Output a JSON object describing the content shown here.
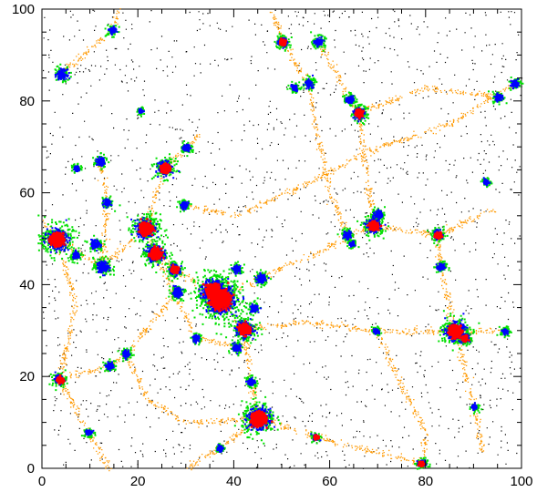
{
  "chart_data": {
    "type": "scatter",
    "title": "",
    "xlabel": "",
    "ylabel": "",
    "xlim": [
      0,
      100
    ],
    "ylim": [
      0,
      100
    ],
    "grid": false,
    "x_ticks": [
      0,
      20,
      40,
      60,
      80,
      100
    ],
    "y_ticks": [
      0,
      20,
      40,
      60,
      80,
      100
    ],
    "x_tick_labels": [
      "0",
      "20",
      "40",
      "60",
      "80",
      "100"
    ],
    "y_tick_labels": [
      "0",
      "20",
      "40",
      "60",
      "80",
      "100"
    ],
    "colors": {
      "background_points": "#000000",
      "filaments": "#ff9900",
      "green": "#00e000",
      "blue": "#0000ff",
      "red": "#ff0000"
    },
    "clusters": [
      {
        "x": 3,
        "y": 50,
        "r": 2.2,
        "red": true
      },
      {
        "x": 21.5,
        "y": 52.5,
        "r": 2.0,
        "red": true
      },
      {
        "x": 23.5,
        "y": 47,
        "r": 1.8,
        "red": true
      },
      {
        "x": 25.5,
        "y": 65.5,
        "r": 1.5,
        "red": true
      },
      {
        "x": 27.5,
        "y": 43.5,
        "r": 1.2,
        "red": true
      },
      {
        "x": 37,
        "y": 37,
        "r": 3.0,
        "red": true
      },
      {
        "x": 35.5,
        "y": 39,
        "r": 2.2,
        "red": true
      },
      {
        "x": 42,
        "y": 30.5,
        "r": 1.8,
        "red": true
      },
      {
        "x": 45,
        "y": 11,
        "r": 2.3,
        "red": true
      },
      {
        "x": 50,
        "y": 93,
        "r": 1.0,
        "red": true
      },
      {
        "x": 66,
        "y": 77.5,
        "r": 1.2,
        "red": true
      },
      {
        "x": 69,
        "y": 53,
        "r": 1.5,
        "red": true
      },
      {
        "x": 82.5,
        "y": 51,
        "r": 1.0,
        "red": true
      },
      {
        "x": 86,
        "y": 30,
        "r": 2.0,
        "red": true
      },
      {
        "x": 88,
        "y": 28.5,
        "r": 1.0,
        "red": true
      },
      {
        "x": 79,
        "y": 1.2,
        "r": 0.8,
        "red": true
      },
      {
        "x": 57,
        "y": 7,
        "r": 0.7,
        "red": true
      },
      {
        "x": 3.5,
        "y": 19.5,
        "r": 1.0,
        "red": true
      },
      {
        "x": 12.5,
        "y": 44,
        "r": 1.3,
        "red": false
      },
      {
        "x": 11,
        "y": 49,
        "r": 1.0,
        "red": false
      },
      {
        "x": 7,
        "y": 46.5,
        "r": 0.8,
        "red": false
      },
      {
        "x": 4,
        "y": 86,
        "r": 1.1,
        "red": false
      },
      {
        "x": 14.5,
        "y": 95.5,
        "r": 0.8,
        "red": false
      },
      {
        "x": 13.5,
        "y": 58,
        "r": 0.8,
        "red": false
      },
      {
        "x": 12,
        "y": 67,
        "r": 0.9,
        "red": false
      },
      {
        "x": 7,
        "y": 65.5,
        "r": 0.6,
        "red": false
      },
      {
        "x": 29.5,
        "y": 57.5,
        "r": 0.8,
        "red": false
      },
      {
        "x": 30,
        "y": 70,
        "r": 0.8,
        "red": false
      },
      {
        "x": 28,
        "y": 38.5,
        "r": 1.1,
        "red": false
      },
      {
        "x": 32,
        "y": 28.5,
        "r": 0.7,
        "red": false
      },
      {
        "x": 40.5,
        "y": 26.5,
        "r": 0.9,
        "red": false
      },
      {
        "x": 40.5,
        "y": 43.5,
        "r": 0.8,
        "red": false
      },
      {
        "x": 45.5,
        "y": 41.5,
        "r": 1.0,
        "red": false
      },
      {
        "x": 44,
        "y": 35,
        "r": 0.9,
        "red": false
      },
      {
        "x": 43.5,
        "y": 19,
        "r": 0.8,
        "red": false
      },
      {
        "x": 17.5,
        "y": 25,
        "r": 0.8,
        "red": false
      },
      {
        "x": 14,
        "y": 22.5,
        "r": 0.8,
        "red": false
      },
      {
        "x": 9.5,
        "y": 8,
        "r": 0.7,
        "red": false
      },
      {
        "x": 37,
        "y": 4.5,
        "r": 0.6,
        "red": false
      },
      {
        "x": 57.5,
        "y": 93,
        "r": 0.9,
        "red": false
      },
      {
        "x": 55.5,
        "y": 84,
        "r": 0.9,
        "red": false
      },
      {
        "x": 52.5,
        "y": 83,
        "r": 0.7,
        "red": false
      },
      {
        "x": 64,
        "y": 80.5,
        "r": 0.8,
        "red": false
      },
      {
        "x": 70,
        "y": 55.5,
        "r": 0.9,
        "red": false
      },
      {
        "x": 63.5,
        "y": 51,
        "r": 0.9,
        "red": false
      },
      {
        "x": 64.5,
        "y": 49,
        "r": 0.6,
        "red": false
      },
      {
        "x": 83,
        "y": 44,
        "r": 0.8,
        "red": false
      },
      {
        "x": 96.5,
        "y": 30,
        "r": 0.7,
        "red": false
      },
      {
        "x": 95,
        "y": 81,
        "r": 0.8,
        "red": false
      },
      {
        "x": 98.5,
        "y": 84,
        "r": 0.8,
        "red": false
      },
      {
        "x": 92.5,
        "y": 62.5,
        "r": 0.6,
        "red": false
      },
      {
        "x": 90,
        "y": 13.5,
        "r": 0.6,
        "red": false
      },
      {
        "x": 69.5,
        "y": 30,
        "r": 0.6,
        "red": false
      },
      {
        "x": 20.5,
        "y": 78,
        "r": 0.5,
        "red": false
      }
    ],
    "filaments": [
      [
        [
          3,
          50
        ],
        [
          12.5,
          44
        ],
        [
          21.5,
          52.5
        ]
      ],
      [
        [
          21.5,
          52.5
        ],
        [
          23.5,
          47
        ],
        [
          27.5,
          43.5
        ],
        [
          37,
          37
        ]
      ],
      [
        [
          21.5,
          52.5
        ],
        [
          25.5,
          65.5
        ],
        [
          30,
          70
        ],
        [
          33,
          73
        ]
      ],
      [
        [
          37,
          37
        ],
        [
          42,
          30.5
        ],
        [
          43.5,
          19
        ],
        [
          45,
          11
        ]
      ],
      [
        [
          37,
          37
        ],
        [
          45.5,
          41.5
        ],
        [
          57,
          47
        ],
        [
          69,
          53
        ]
      ],
      [
        [
          69,
          53
        ],
        [
          82.5,
          51
        ],
        [
          95,
          57
        ]
      ],
      [
        [
          69,
          53
        ],
        [
          66,
          77.5
        ],
        [
          64,
          80.5
        ],
        [
          57.5,
          93
        ]
      ],
      [
        [
          66,
          77.5
        ],
        [
          80,
          83
        ],
        [
          95,
          81
        ]
      ],
      [
        [
          82.5,
          51
        ],
        [
          83,
          44
        ],
        [
          86,
          30
        ]
      ],
      [
        [
          86,
          30
        ],
        [
          96.5,
          30
        ]
      ],
      [
        [
          86,
          30
        ],
        [
          90,
          13.5
        ],
        [
          92,
          3
        ]
      ],
      [
        [
          42,
          30.5
        ],
        [
          55,
          32
        ],
        [
          69.5,
          30
        ],
        [
          86,
          30
        ]
      ],
      [
        [
          45,
          11
        ],
        [
          57,
          7
        ],
        [
          68,
          4
        ],
        [
          79,
          1.2
        ]
      ],
      [
        [
          45,
          11
        ],
        [
          37,
          4.5
        ],
        [
          30,
          0
        ]
      ],
      [
        [
          3.5,
          19.5
        ],
        [
          14,
          22.5
        ],
        [
          17.5,
          25
        ],
        [
          28,
          38.5
        ]
      ],
      [
        [
          3.5,
          19.5
        ],
        [
          9.5,
          8
        ],
        [
          14,
          0
        ]
      ],
      [
        [
          50,
          93
        ],
        [
          55.5,
          84
        ],
        [
          57,
          75
        ],
        [
          60,
          60
        ],
        [
          63.5,
          51
        ]
      ],
      [
        [
          50,
          93
        ],
        [
          48,
          100
        ]
      ],
      [
        [
          4,
          86
        ],
        [
          14.5,
          95.5
        ],
        [
          16,
          100
        ]
      ],
      [
        [
          12,
          67
        ],
        [
          13.5,
          58
        ],
        [
          12.5,
          44
        ]
      ],
      [
        [
          3,
          50
        ],
        [
          0,
          54
        ]
      ],
      [
        [
          23.5,
          47
        ],
        [
          32,
          28.5
        ],
        [
          40.5,
          26.5
        ]
      ],
      [
        [
          29.5,
          57.5
        ],
        [
          40,
          55
        ],
        [
          55,
          62
        ],
        [
          70,
          70
        ],
        [
          85,
          75
        ],
        [
          98.5,
          84
        ]
      ],
      [
        [
          17.5,
          25
        ],
        [
          22,
          15
        ],
        [
          30,
          10
        ],
        [
          45,
          11
        ]
      ],
      [
        [
          69.5,
          30
        ],
        [
          75,
          18
        ],
        [
          80,
          8
        ],
        [
          79,
          1.2
        ]
      ],
      [
        [
          3,
          50
        ],
        [
          7,
          36
        ],
        [
          3.5,
          19.5
        ]
      ]
    ]
  }
}
